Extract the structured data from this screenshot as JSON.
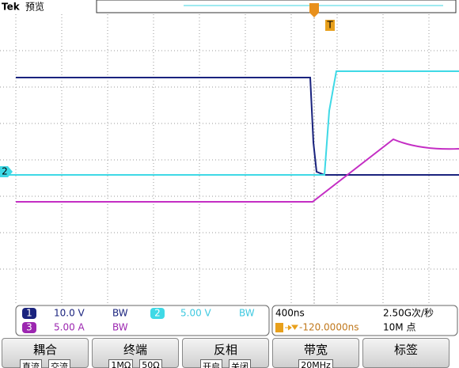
{
  "header": {
    "brand": "Tek",
    "mode": "预览"
  },
  "markers": {
    "trigger": "T",
    "channel2": "2"
  },
  "channels": [
    {
      "number": "1",
      "scale": "10.0 V",
      "bw": "BW"
    },
    {
      "number": "2",
      "scale": "5.00 V",
      "bw": "BW"
    },
    {
      "number": "3",
      "scale": "5.00 A",
      "bw": "BW"
    }
  ],
  "timebase": {
    "scale": "400ns",
    "sample_rate": "2.50G次/秒",
    "trigger_position": "-120.0000ns",
    "record_length": "10M 点"
  },
  "menu": [
    {
      "title": "耦合",
      "options": [
        "直流",
        "交流"
      ]
    },
    {
      "title": "终端",
      "options": [
        "1MΩ",
        "50Ω"
      ]
    },
    {
      "title": "反相",
      "options": [
        "开启",
        "关闭"
      ]
    },
    {
      "title": "带宽",
      "options": [
        "20MHz"
      ]
    },
    {
      "title": "标签",
      "options": []
    }
  ]
}
